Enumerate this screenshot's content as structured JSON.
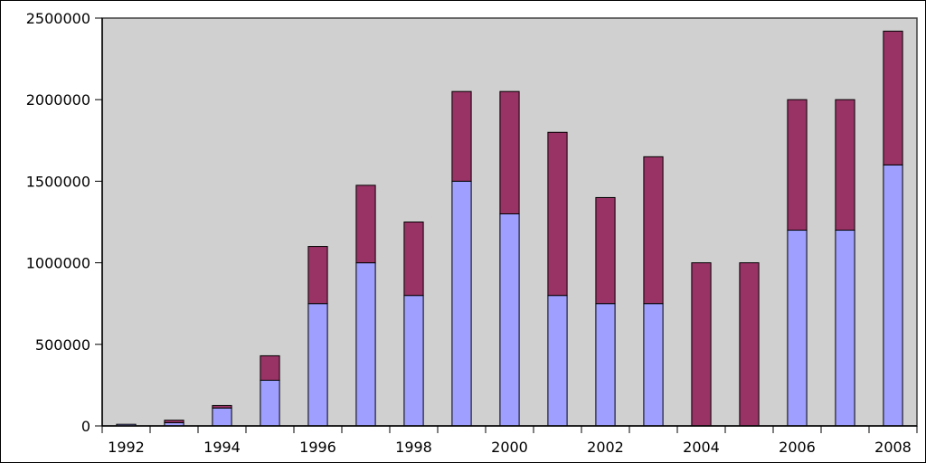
{
  "chart_data": {
    "type": "bar",
    "stacked": true,
    "title": "",
    "xlabel": "",
    "ylabel": "",
    "categories": [
      "1992",
      "1993",
      "1994",
      "1995",
      "1996",
      "1997",
      "1998",
      "1999",
      "2000",
      "2001",
      "2002",
      "2003",
      "2004",
      "2005",
      "2006",
      "2007",
      "2008"
    ],
    "x_tick_labels": [
      "1992",
      "1994",
      "1996",
      "1998",
      "2000",
      "2002",
      "2004",
      "2006",
      "2008"
    ],
    "y_tick_labels": [
      "0",
      "500000",
      "1000000",
      "1500000",
      "2000000",
      "2500000"
    ],
    "ylim": [
      0,
      2500000
    ],
    "grid": false,
    "legend": "none",
    "plot_background": "#d0d0d0",
    "series": [
      {
        "color": "#9f9fff",
        "values": [
          10000,
          20000,
          110000,
          280000,
          750000,
          1000000,
          800000,
          1500000,
          1300000,
          800000,
          750000,
          750000,
          0,
          0,
          1200000,
          1200000,
          1600000
        ]
      },
      {
        "color": "#993366",
        "values": [
          0,
          15000,
          15000,
          150000,
          350000,
          475000,
          450000,
          550000,
          750000,
          1000000,
          650000,
          900000,
          1000000,
          1000000,
          800000,
          800000,
          820000
        ]
      }
    ]
  }
}
